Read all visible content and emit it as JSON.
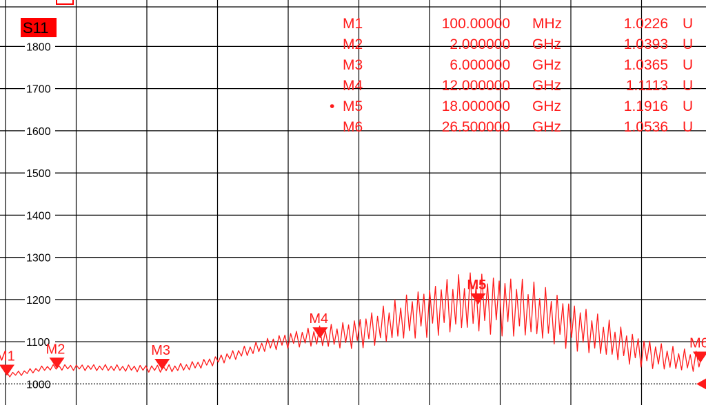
{
  "colors": {
    "trace": "#ff1a1a",
    "marker": "#ff1a1a",
    "grid": "#000000",
    "reference": "#000000",
    "badge": "#ff0000",
    "background": "#ffffff"
  },
  "chart_data": {
    "type": "line",
    "trace_name": "S11",
    "ylim": [
      950,
      1910
    ],
    "xlim": [
      0.1,
      26.5
    ],
    "y_ticks": [
      {
        "value": 1800,
        "label": "1800"
      },
      {
        "value": 1700,
        "label": "1700"
      },
      {
        "value": 1600,
        "label": "1600"
      },
      {
        "value": 1500,
        "label": "1500"
      },
      {
        "value": 1400,
        "label": "1400"
      },
      {
        "value": 1300,
        "label": "1300"
      },
      {
        "value": 1200,
        "label": "1200"
      },
      {
        "value": 1100,
        "label": "1100"
      },
      {
        "value": 1000,
        "label": "1000"
      }
    ],
    "reference_level": 1000,
    "grid": true,
    "markers": [
      {
        "name": "M1",
        "x": 0.1,
        "stimulus": "100.00000",
        "unit": "MHz",
        "response": "1.0226",
        "response_unit": "U",
        "y": 1022.6,
        "active": false
      },
      {
        "name": "M2",
        "x": 2.0,
        "stimulus": "2.000000",
        "unit": "GHz",
        "response": "1.0393",
        "response_unit": "U",
        "y": 1039.3,
        "active": false
      },
      {
        "name": "M3",
        "x": 6.0,
        "stimulus": "6.000000",
        "unit": "GHz",
        "response": "1.0365",
        "response_unit": "U",
        "y": 1036.5,
        "active": false
      },
      {
        "name": "M4",
        "x": 12.0,
        "stimulus": "12.000000",
        "unit": "GHz",
        "response": "1.1113",
        "response_unit": "U",
        "y": 1111.3,
        "active": false
      },
      {
        "name": "M5",
        "x": 18.0,
        "stimulus": "18.000000",
        "unit": "GHz",
        "response": "1.1916",
        "response_unit": "U",
        "y": 1191.6,
        "active": true
      },
      {
        "name": "M6",
        "x": 26.5,
        "stimulus": "26.500000",
        "unit": "GHz",
        "response": "1.0536",
        "response_unit": "U",
        "y": 1053.6,
        "active": false
      }
    ],
    "active_marker_symbol": "•"
  }
}
